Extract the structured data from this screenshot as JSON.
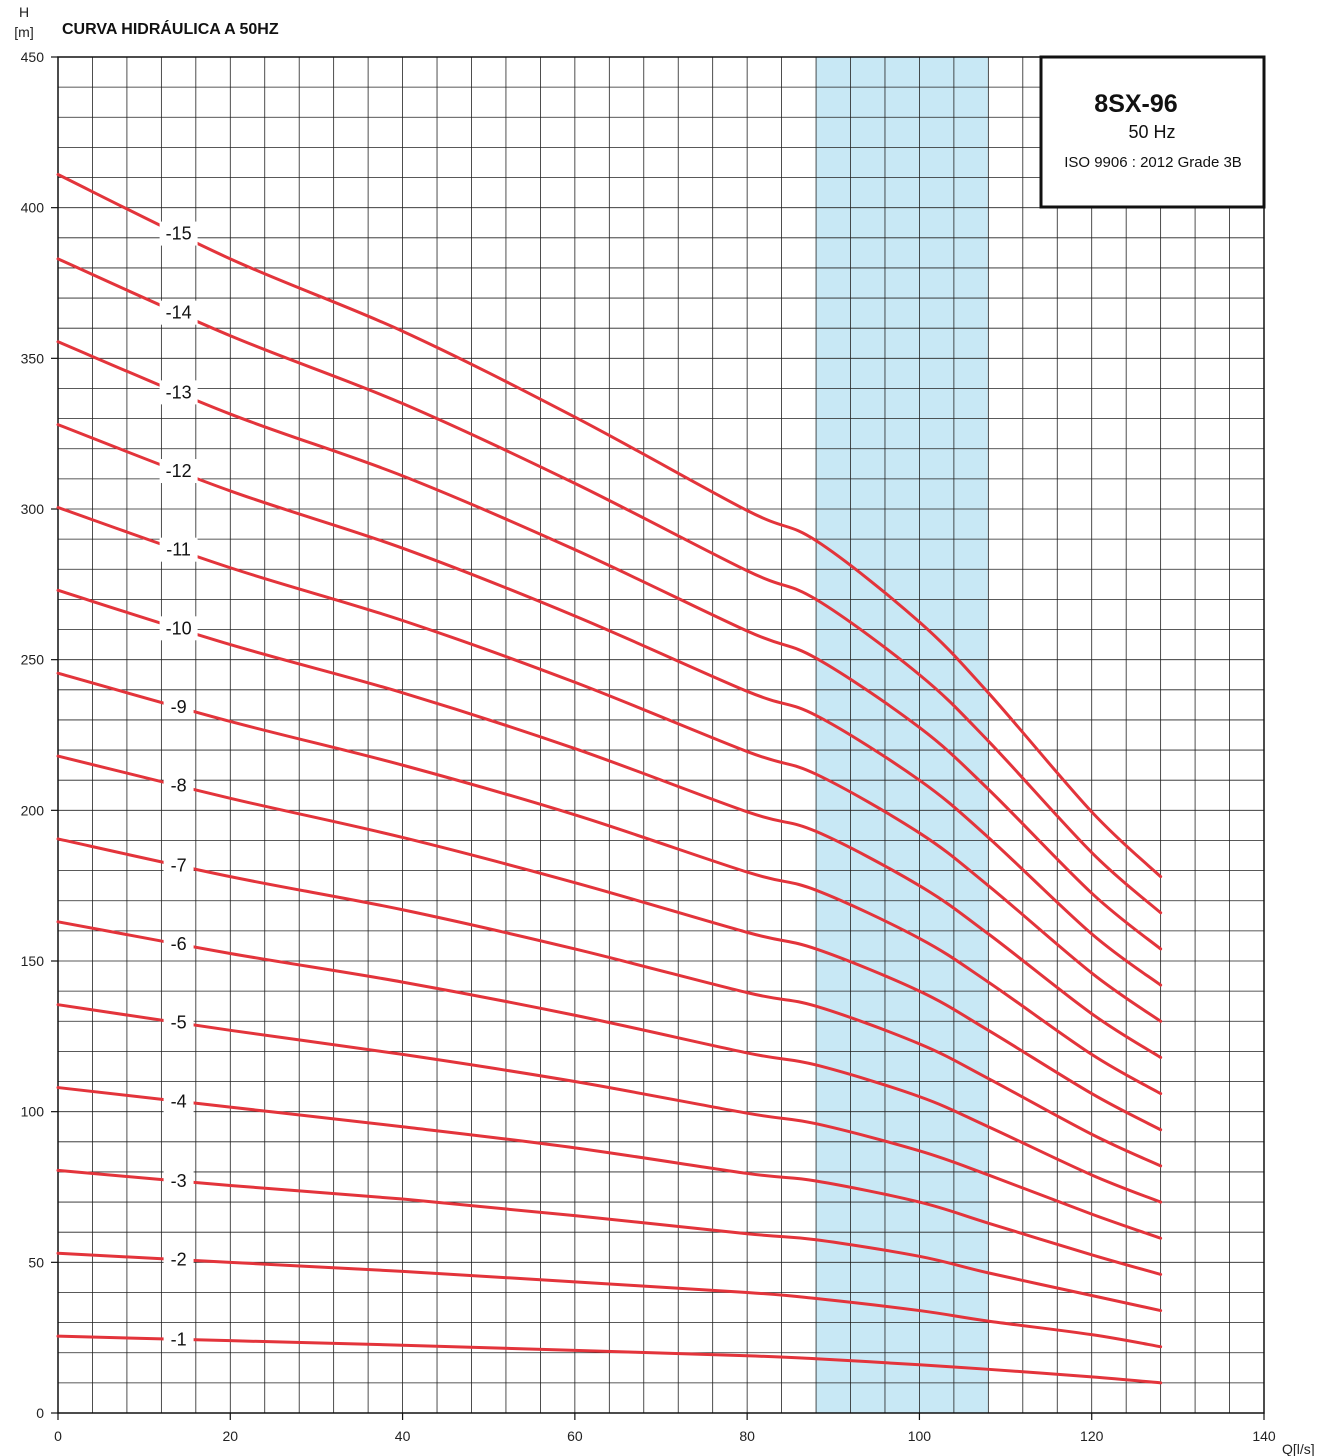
{
  "chart_data": {
    "type": "line",
    "title": "CURVA HIDRÁULICA A 50HZ",
    "y_unit_top": "H",
    "y_unit_bottom": "[m]",
    "x_unit": "Q[l/s]",
    "xlim": [
      0,
      140
    ],
    "ylim": [
      0,
      450
    ],
    "x_ticks": [
      0,
      20,
      40,
      60,
      80,
      100,
      120,
      140
    ],
    "y_ticks": [
      0,
      50,
      100,
      150,
      200,
      250,
      300,
      350,
      400,
      450
    ],
    "grid": true,
    "x_grid_step": 4,
    "y_grid_step": 10,
    "highlight_range": [
      88,
      108
    ],
    "highlight_color": "#c8e8f5",
    "curve_color": "#e3343b",
    "info_box": {
      "model": "8SX-96",
      "frequency": "50 Hz",
      "standard": "ISO 9906 : 2012 Grade 3B",
      "placement": "top-right"
    },
    "x": [
      0,
      20,
      40,
      60,
      80,
      88,
      100,
      108,
      120,
      128
    ],
    "series": [
      {
        "name": "-1",
        "values": [
          25.5,
          24,
          22.5,
          20.8,
          19,
          18,
          16,
          14.5,
          12,
          10
        ]
      },
      {
        "name": "-2",
        "values": [
          53,
          50,
          47,
          43.5,
          40,
          38,
          34,
          30.5,
          26,
          22
        ]
      },
      {
        "name": "-3",
        "values": [
          80.5,
          75.5,
          71,
          65.5,
          59.5,
          57.5,
          52,
          46.5,
          39,
          34
        ]
      },
      {
        "name": "-4",
        "values": [
          108,
          101.5,
          95,
          88,
          79.5,
          77,
          70,
          63,
          52.5,
          46
        ]
      },
      {
        "name": "-5",
        "values": [
          135.5,
          127,
          119,
          110,
          99.5,
          96,
          87,
          79,
          66,
          58
        ]
      },
      {
        "name": "-6",
        "values": [
          163,
          152.5,
          143,
          132,
          119.5,
          115.5,
          105,
          95,
          79,
          70
        ]
      },
      {
        "name": "-7",
        "values": [
          190.5,
          178,
          167,
          154,
          139.5,
          135,
          122.5,
          111,
          92.5,
          82
        ]
      },
      {
        "name": "-8",
        "values": [
          218,
          204,
          191,
          176,
          159.5,
          154,
          140,
          127,
          106,
          94
        ]
      },
      {
        "name": "-9",
        "values": [
          245.5,
          229.5,
          215,
          198.5,
          179.5,
          173.5,
          157.5,
          143,
          119,
          106
        ]
      },
      {
        "name": "-10",
        "values": [
          273,
          255,
          239,
          220.5,
          199.5,
          193,
          175,
          159,
          132.5,
          118
        ]
      },
      {
        "name": "-11",
        "values": [
          300.5,
          280.5,
          263,
          242.5,
          219.5,
          212,
          192.5,
          175,
          146,
          130
        ]
      },
      {
        "name": "-12",
        "values": [
          328,
          306,
          287,
          264.5,
          239.5,
          231.5,
          210,
          191,
          159,
          142
        ]
      },
      {
        "name": "-13",
        "values": [
          355.5,
          331.5,
          311,
          286.5,
          259.5,
          250.5,
          227.5,
          207,
          172.5,
          154
        ]
      },
      {
        "name": "-14",
        "values": [
          383,
          357.5,
          335,
          308.5,
          279.5,
          270,
          245,
          223,
          186,
          166
        ]
      },
      {
        "name": "-15",
        "values": [
          411,
          383,
          359,
          330.5,
          299.5,
          289.5,
          262.5,
          239,
          199.5,
          178
        ]
      }
    ],
    "curve_label_x": 14
  }
}
